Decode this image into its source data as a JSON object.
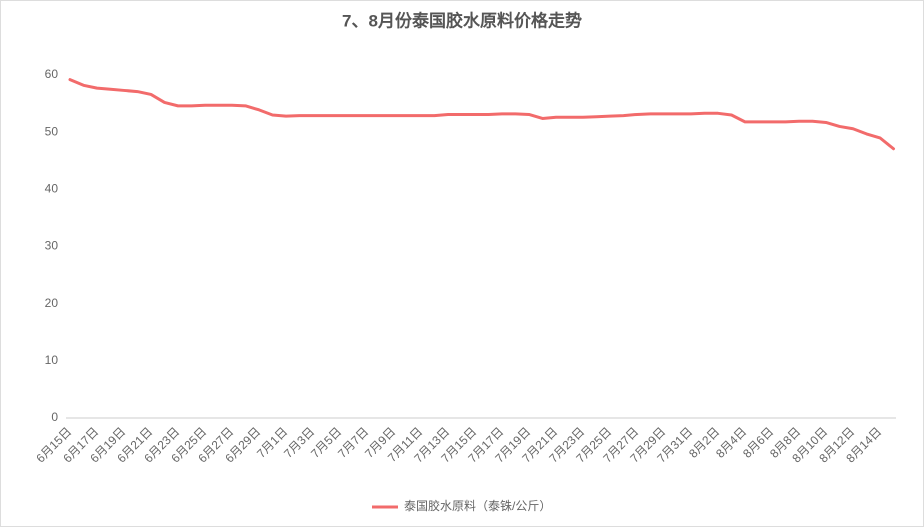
{
  "chart_data": {
    "type": "line",
    "title": "7、8月份泰国胶水原料价格走势",
    "categories": [
      "6月15日",
      null,
      "6月17日",
      null,
      "6月19日",
      null,
      "6月21日",
      null,
      "6月23日",
      null,
      "6月25日",
      null,
      "6月27日",
      null,
      "6月29日",
      null,
      "7月1日",
      null,
      "7月3日",
      null,
      "7月5日",
      null,
      "7月7日",
      null,
      "7月9日",
      null,
      "7月11日",
      null,
      "7月13日",
      null,
      "7月15日",
      null,
      "7月17日",
      null,
      "7月19日",
      null,
      "7月21日",
      null,
      "7月23日",
      null,
      "7月25日",
      null,
      "7月27日",
      null,
      "7月29日",
      null,
      "7月31日",
      null,
      "8月2日",
      null,
      "8月4日",
      null,
      "8月6日",
      null,
      "8月8日",
      null,
      "8月10日",
      null,
      "8月12日",
      null,
      "8月14日",
      null
    ],
    "series": [
      {
        "name": "泰国胶水原料（泰铢/公斤）",
        "color": "#f26b6b",
        "values": [
          59.2,
          58.2,
          57.7,
          57.5,
          57.3,
          57.1,
          56.6,
          55.2,
          54.6,
          54.6,
          54.7,
          54.7,
          54.7,
          54.6,
          53.9,
          53.0,
          52.8,
          52.9,
          52.9,
          52.9,
          52.9,
          52.9,
          52.9,
          52.9,
          52.9,
          52.9,
          52.9,
          52.9,
          53.1,
          53.1,
          53.1,
          53.1,
          53.2,
          53.2,
          53.1,
          52.4,
          52.6,
          52.6,
          52.6,
          52.7,
          52.8,
          52.9,
          53.1,
          53.2,
          53.2,
          53.2,
          53.2,
          53.3,
          53.3,
          53.0,
          51.8,
          51.8,
          51.8,
          51.8,
          51.9,
          51.9,
          51.7,
          51.0,
          50.6,
          49.7,
          49.0,
          47.1
        ]
      }
    ],
    "ylim": [
      0,
      60
    ],
    "yticks": [
      0,
      10,
      20,
      30,
      40,
      50,
      60
    ],
    "grid": false,
    "legend": "bottom"
  }
}
